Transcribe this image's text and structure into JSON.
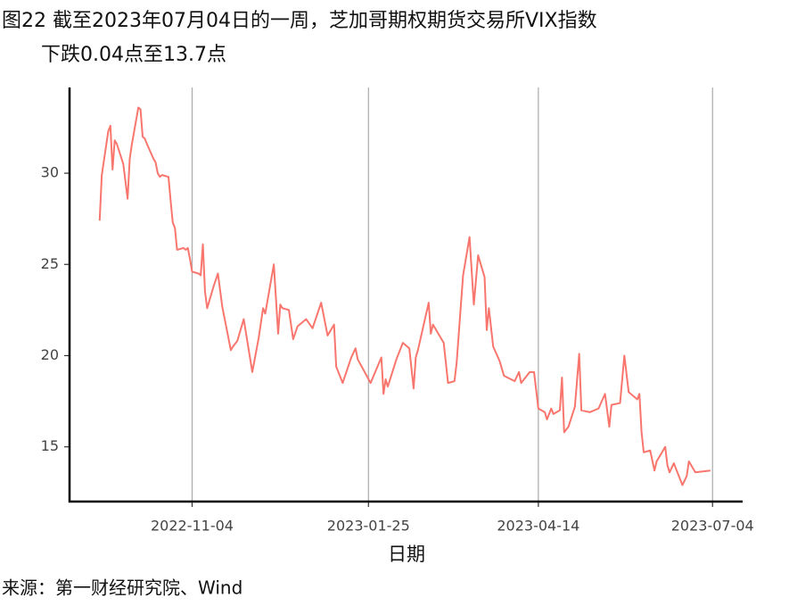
{
  "chart_data": {
    "type": "line",
    "title_lines": [
      "图22  截至2023年07月04日的一周，芝加哥期权期货交易所VIX指数",
      "下跌0.04点至13.7点"
    ],
    "x_label": "日期",
    "source": "来源：第一财经研究院、Wind",
    "color": "#F8766D",
    "grid": true,
    "xlim": [
      "2022-09-08",
      "2023-07-18"
    ],
    "xticks": [
      "2022-11-04",
      "2023-01-25",
      "2023-04-14",
      "2023-07-04"
    ],
    "ylim": [
      12,
      34.7
    ],
    "yticks": [
      15,
      20,
      25,
      30
    ],
    "x": [
      "2022-09-22",
      "2022-09-23",
      "2022-09-26",
      "2022-09-27",
      "2022-09-28",
      "2022-09-29",
      "2022-09-30",
      "2022-10-03",
      "2022-10-05",
      "2022-10-06",
      "2022-10-07",
      "2022-10-10",
      "2022-10-11",
      "2022-10-12",
      "2022-10-13",
      "2022-10-14",
      "2022-10-17",
      "2022-10-18",
      "2022-10-19",
      "2022-10-20",
      "2022-10-21",
      "2022-10-24",
      "2022-10-25",
      "2022-10-26",
      "2022-10-27",
      "2022-10-28",
      "2022-10-31",
      "2022-11-01",
      "2022-11-02",
      "2022-11-03",
      "2022-11-04",
      "2022-11-07",
      "2022-11-08",
      "2022-11-09",
      "2022-11-10",
      "2022-11-11",
      "2022-11-14",
      "2022-11-16",
      "2022-11-17",
      "2022-11-18",
      "2022-11-22",
      "2022-11-23",
      "2022-11-25",
      "2022-11-28",
      "2022-12-02",
      "2022-12-05",
      "2022-12-07",
      "2022-12-08",
      "2022-12-12",
      "2022-12-14",
      "2022-12-15",
      "2022-12-16",
      "2022-12-19",
      "2022-12-21",
      "2022-12-23",
      "2022-12-27",
      "2022-12-30",
      "2023-01-03",
      "2023-01-06",
      "2023-01-09",
      "2023-01-10",
      "2023-01-13",
      "2023-01-17",
      "2023-01-19",
      "2023-01-20",
      "2023-01-26",
      "2023-01-31",
      "2023-02-01",
      "2023-02-02",
      "2023-02-03",
      "2023-02-07",
      "2023-02-10",
      "2023-02-13",
      "2023-02-15",
      "2023-02-16",
      "2023-02-17",
      "2023-02-22",
      "2023-02-23",
      "2023-02-24",
      "2023-03-01",
      "2023-03-03",
      "2023-03-06",
      "2023-03-07",
      "2023-03-10",
      "2023-03-13",
      "2023-03-15",
      "2023-03-17",
      "2023-03-20",
      "2023-03-21",
      "2023-03-22",
      "2023-03-24",
      "2023-03-27",
      "2023-03-29",
      "2023-04-03",
      "2023-04-05",
      "2023-04-06",
      "2023-04-10",
      "2023-04-12",
      "2023-04-14",
      "2023-04-17",
      "2023-04-18",
      "2023-04-20",
      "2023-04-21",
      "2023-04-24",
      "2023-04-25",
      "2023-04-26",
      "2023-04-28",
      "2023-05-01",
      "2023-05-03",
      "2023-05-04",
      "2023-05-08",
      "2023-05-12",
      "2023-05-15",
      "2023-05-17",
      "2023-05-18",
      "2023-05-22",
      "2023-05-24",
      "2023-05-26",
      "2023-05-30",
      "2023-05-31",
      "2023-06-01",
      "2023-06-02",
      "2023-06-05",
      "2023-06-07",
      "2023-06-08",
      "2023-06-12",
      "2023-06-13",
      "2023-06-14",
      "2023-06-16",
      "2023-06-20",
      "2023-06-22",
      "2023-06-23",
      "2023-06-26",
      "2023-07-03"
    ],
    "values": [
      27.4,
      29.9,
      32.3,
      32.6,
      30.2,
      31.8,
      31.6,
      30.5,
      28.6,
      30.8,
      31.6,
      33.6,
      33.5,
      32.0,
      31.9,
      31.6,
      30.8,
      30.6,
      30.0,
      29.8,
      29.9,
      29.8,
      28.5,
      27.3,
      27.0,
      25.8,
      25.9,
      25.8,
      25.9,
      25.3,
      24.6,
      24.5,
      24.4,
      26.1,
      23.5,
      22.6,
      23.8,
      24.5,
      23.6,
      22.7,
      20.3,
      20.5,
      20.8,
      22.0,
      19.1,
      21.0,
      22.6,
      22.3,
      25.0,
      21.2,
      22.8,
      22.6,
      22.5,
      20.9,
      21.6,
      22.0,
      21.5,
      22.9,
      21.1,
      21.7,
      19.4,
      18.5,
      19.9,
      20.4,
      19.8,
      18.5,
      19.9,
      17.9,
      18.7,
      18.3,
      19.8,
      20.7,
      20.4,
      18.2,
      19.9,
      20.3,
      22.9,
      21.2,
      21.7,
      20.7,
      18.5,
      18.6,
      19.6,
      24.4,
      26.5,
      22.8,
      25.5,
      24.3,
      21.4,
      22.6,
      20.5,
      19.7,
      18.9,
      18.6,
      19.1,
      18.5,
      19.1,
      19.1,
      17.1,
      16.9,
      16.5,
      17.1,
      16.8,
      17.0,
      18.8,
      15.8,
      16.1,
      17.2,
      20.1,
      17.0,
      16.9,
      17.1,
      17.9,
      16.1,
      17.3,
      17.4,
      20.0,
      18.0,
      17.6,
      17.9,
      15.8,
      14.7,
      14.8,
      13.7,
      14.2,
      15.0,
      14.0,
      13.6,
      14.1,
      12.9,
      13.4,
      14.2,
      13.6,
      13.7
    ]
  }
}
